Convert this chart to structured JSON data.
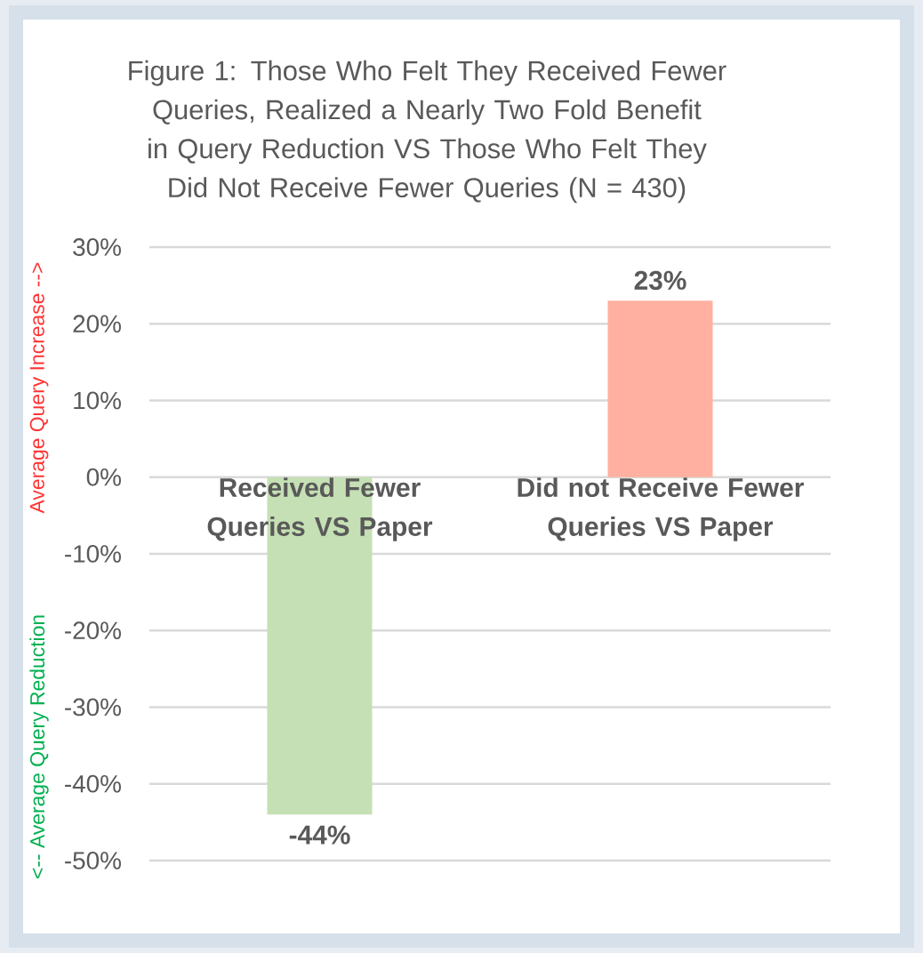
{
  "chart_data": {
    "type": "bar",
    "title": "Figure 1: Those Who Felt They Received Fewer Queries, Realized a Nearly Two Fold Benefit in Query Reduction VS Those Who Felt They Did Not Receive Fewer Queries (N = 430)",
    "categories": [
      "Received Fewer Queries VS Paper",
      "Did not Receive Fewer Queries VS Paper"
    ],
    "values": [
      -44,
      23
    ],
    "colors": [
      "#c5e0b4",
      "#ffb0a0"
    ],
    "value_labels": [
      "-44%",
      "23%"
    ],
    "ylim": [
      -50,
      30
    ],
    "yticks": [
      {
        "value": -50,
        "label": "-50%"
      },
      {
        "value": -40,
        "label": "-40%"
      },
      {
        "value": -30,
        "label": "-30%"
      },
      {
        "value": -20,
        "label": "-20%"
      },
      {
        "value": -10,
        "label": "-10%"
      },
      {
        "value": 0,
        "label": "0%"
      },
      {
        "value": 10,
        "label": "10%"
      },
      {
        "value": 20,
        "label": "20%"
      },
      {
        "value": 30,
        "label": "30%"
      }
    ],
    "grid": "y",
    "annotations": [
      "<-- Average Query Reduction",
      "Average Query Increase -->"
    ]
  }
}
